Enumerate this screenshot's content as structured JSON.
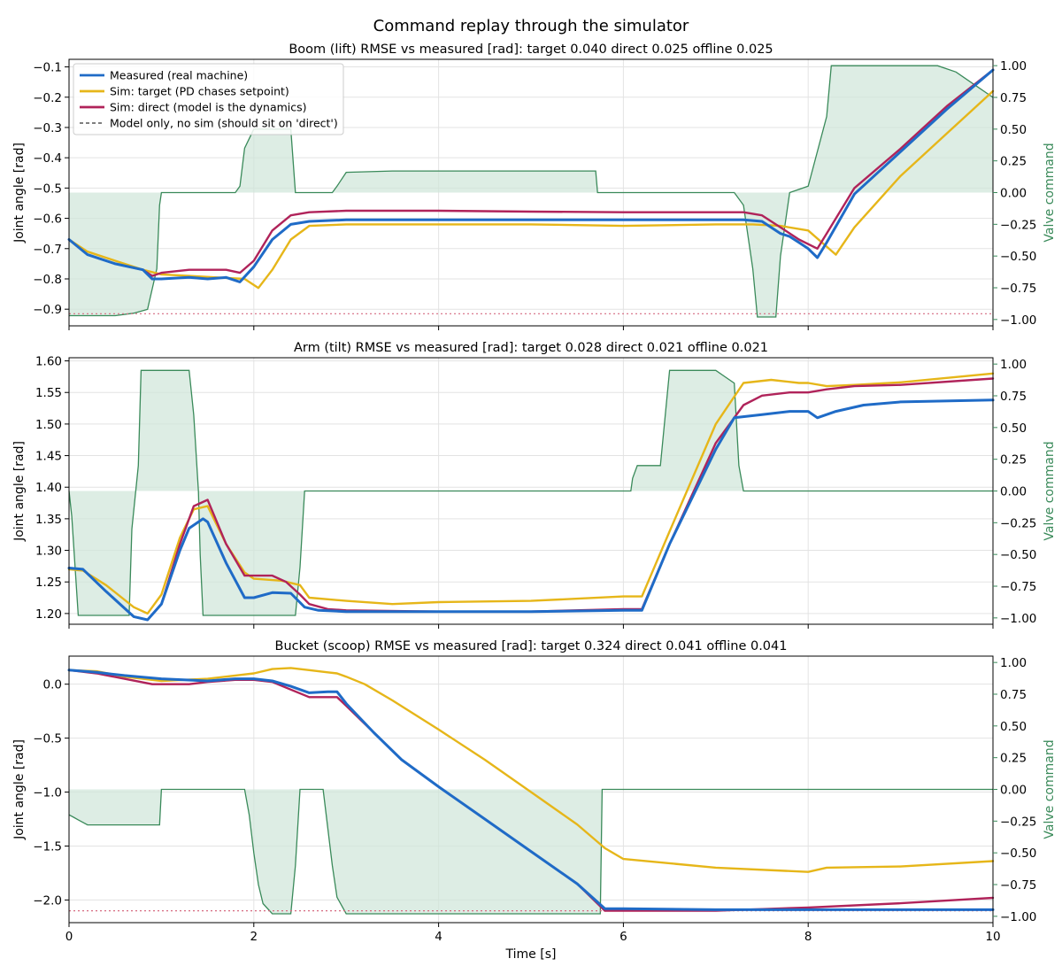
{
  "suptitle": "Command replay through the simulator",
  "legend": {
    "entries": [
      {
        "label": "Measured (real machine)",
        "color": "#1f6bc7",
        "style": "solid"
      },
      {
        "label": "Sim: target (PD chases setpoint)",
        "color": "#e6b619",
        "style": "solid"
      },
      {
        "label": "Sim: direct (model is the dynamics)",
        "color": "#b0235a",
        "style": "solid"
      },
      {
        "label": "Model only, no sim (should sit on 'direct')",
        "color": "#555555",
        "style": "dashed"
      }
    ],
    "placement": "upper-left"
  },
  "colors": {
    "measured": "#1f6bc7",
    "target": "#e6b619",
    "direct": "#b0235a",
    "model_only": "#555555",
    "valve": "#3a8a5a",
    "valve_fill": "#cfe6d8"
  },
  "chart_data": [
    {
      "type": "line",
      "title": "Boom (lift)   RMSE vs measured [rad]:  target 0.040   direct 0.025   offline 0.025",
      "xlabel": "",
      "ylabel": "Joint angle [rad]",
      "ylabel_right": "Valve command",
      "xlim": [
        0,
        10
      ],
      "ylim": [
        -0.955,
        -0.075
      ],
      "ylim_right": [
        -1.05,
        1.05
      ],
      "xticks": [
        0,
        2,
        4,
        6,
        8,
        10
      ],
      "yticks": [
        -0.9,
        -0.8,
        -0.7,
        -0.6,
        -0.5,
        -0.4,
        -0.3,
        -0.2,
        -0.1
      ],
      "ytick_labels": [
        "−0.9",
        "−0.8",
        "−0.7",
        "−0.6",
        "−0.5",
        "−0.4",
        "−0.3",
        "−0.2",
        "−0.1"
      ],
      "yticks_right": [
        -1.0,
        -0.75,
        -0.5,
        -0.25,
        0.0,
        0.25,
        0.5,
        0.75,
        1.0
      ],
      "ytick_labels_right": [
        "−1.00",
        "−0.75",
        "−0.50",
        "−0.25",
        "0.00",
        "0.25",
        "0.50",
        "0.75",
        "1.00"
      ],
      "grid": true,
      "series": [
        {
          "name": "Measured (real machine)",
          "key": "measured",
          "x": [
            0,
            0.2,
            0.5,
            0.8,
            0.9,
            1.0,
            1.3,
            1.5,
            1.7,
            1.85,
            2.0,
            2.2,
            2.4,
            2.6,
            3.0,
            4.0,
            5.0,
            6.0,
            7.0,
            7.3,
            7.5,
            7.7,
            7.8,
            7.9,
            8.0,
            8.1,
            8.2,
            8.5,
            9.0,
            9.5,
            10.0
          ],
          "y": [
            -0.67,
            -0.72,
            -0.75,
            -0.77,
            -0.8,
            -0.8,
            -0.795,
            -0.8,
            -0.795,
            -0.81,
            -0.76,
            -0.67,
            -0.62,
            -0.61,
            -0.605,
            -0.605,
            -0.605,
            -0.605,
            -0.605,
            -0.605,
            -0.61,
            -0.65,
            -0.66,
            -0.68,
            -0.7,
            -0.73,
            -0.68,
            -0.52,
            -0.38,
            -0.24,
            -0.11
          ]
        },
        {
          "name": "Sim: target (PD chases setpoint)",
          "key": "target",
          "x": [
            0,
            0.2,
            0.5,
            0.8,
            1.0,
            1.3,
            1.6,
            1.9,
            2.05,
            2.2,
            2.4,
            2.6,
            3.0,
            4.0,
            5.0,
            6.0,
            7.0,
            7.4,
            7.7,
            8.0,
            8.3,
            8.5,
            9.0,
            9.5,
            10.0
          ],
          "y": [
            -0.67,
            -0.71,
            -0.74,
            -0.77,
            -0.785,
            -0.79,
            -0.795,
            -0.8,
            -0.83,
            -0.77,
            -0.67,
            -0.625,
            -0.62,
            -0.62,
            -0.62,
            -0.625,
            -0.62,
            -0.62,
            -0.625,
            -0.64,
            -0.72,
            -0.63,
            -0.46,
            -0.32,
            -0.18
          ]
        },
        {
          "name": "Sim: direct (model is the dynamics)",
          "key": "direct",
          "x": [
            0,
            0.2,
            0.5,
            0.8,
            0.9,
            1.0,
            1.3,
            1.5,
            1.7,
            1.85,
            2.0,
            2.2,
            2.4,
            2.6,
            3.0,
            4.0,
            5.0,
            6.0,
            7.0,
            7.3,
            7.5,
            7.7,
            7.9,
            8.1,
            8.2,
            8.5,
            9.0,
            9.5,
            10.0
          ],
          "y": [
            -0.67,
            -0.72,
            -0.75,
            -0.77,
            -0.79,
            -0.78,
            -0.77,
            -0.77,
            -0.77,
            -0.78,
            -0.74,
            -0.64,
            -0.59,
            -0.58,
            -0.575,
            -0.575,
            -0.578,
            -0.58,
            -0.58,
            -0.58,
            -0.59,
            -0.63,
            -0.67,
            -0.7,
            -0.65,
            -0.5,
            -0.37,
            -0.23,
            -0.11
          ]
        },
        {
          "name": "valve",
          "key": "valve",
          "x": [
            0,
            0.5,
            0.7,
            0.85,
            0.95,
            0.98,
            1.0,
            1.8,
            1.85,
            1.9,
            2.0,
            2.1,
            2.3,
            2.4,
            2.45,
            2.7,
            2.85,
            2.9,
            3.0,
            3.5,
            4.0,
            5.0,
            5.7,
            5.72,
            7.2,
            7.3,
            7.4,
            7.45,
            7.5,
            7.65,
            7.7,
            7.75,
            7.8,
            8.0,
            8.2,
            8.25,
            9.0,
            9.4,
            9.6,
            9.8,
            10.0
          ],
          "y": [
            -0.97,
            -0.97,
            -0.95,
            -0.92,
            -0.6,
            -0.1,
            0.0,
            0.0,
            0.05,
            0.35,
            0.5,
            0.5,
            0.5,
            0.5,
            0.0,
            0.0,
            0.0,
            0.05,
            0.16,
            0.17,
            0.17,
            0.17,
            0.17,
            0.0,
            0.0,
            -0.1,
            -0.6,
            -0.98,
            -0.98,
            -0.98,
            -0.5,
            -0.25,
            0.0,
            0.05,
            0.6,
            1.0,
            1.0,
            1.0,
            0.95,
            0.85,
            0.75
          ]
        }
      ],
      "reference_lines": [
        {
          "axis": "y",
          "value": -0.915,
          "color": "#d66a80",
          "style": "dotted"
        }
      ]
    },
    {
      "type": "line",
      "title": "Arm (tilt)   RMSE vs measured [rad]:  target 0.028   direct 0.021   offline 0.021",
      "xlabel": "",
      "ylabel": "Joint angle [rad]",
      "ylabel_right": "Valve command",
      "xlim": [
        0,
        10
      ],
      "ylim": [
        1.183,
        1.605
      ],
      "ylim_right": [
        -1.05,
        1.05
      ],
      "xticks": [
        0,
        2,
        4,
        6,
        8,
        10
      ],
      "yticks": [
        1.2,
        1.25,
        1.3,
        1.35,
        1.4,
        1.45,
        1.5,
        1.55,
        1.6
      ],
      "ytick_labels": [
        "1.20",
        "1.25",
        "1.30",
        "1.35",
        "1.40",
        "1.45",
        "1.50",
        "1.55",
        "1.60"
      ],
      "yticks_right": [
        -1.0,
        -0.75,
        -0.5,
        -0.25,
        0.0,
        0.25,
        0.5,
        0.75,
        1.0
      ],
      "ytick_labels_right": [
        "−1.00",
        "−0.75",
        "−0.50",
        "−0.25",
        "0.00",
        "0.25",
        "0.50",
        "0.75",
        "1.00"
      ],
      "grid": true,
      "series": [
        {
          "name": "Measured (real machine)",
          "key": "measured",
          "x": [
            0,
            0.15,
            0.4,
            0.7,
            0.85,
            1.0,
            1.2,
            1.3,
            1.45,
            1.5,
            1.7,
            1.9,
            2.0,
            2.2,
            2.4,
            2.55,
            2.7,
            3.0,
            4.0,
            5.0,
            6.0,
            6.2,
            6.5,
            7.0,
            7.2,
            7.5,
            7.8,
            8.0,
            8.1,
            8.3,
            8.6,
            9.0,
            10.0
          ],
          "y": [
            1.272,
            1.27,
            1.235,
            1.195,
            1.19,
            1.215,
            1.3,
            1.335,
            1.35,
            1.345,
            1.28,
            1.225,
            1.225,
            1.233,
            1.232,
            1.21,
            1.205,
            1.203,
            1.203,
            1.203,
            1.205,
            1.205,
            1.31,
            1.46,
            1.51,
            1.515,
            1.52,
            1.52,
            1.51,
            1.52,
            1.53,
            1.535,
            1.538
          ]
        },
        {
          "name": "Sim: target (PD chases setpoint)",
          "key": "target",
          "x": [
            0,
            0.15,
            0.4,
            0.7,
            0.85,
            1.0,
            1.2,
            1.35,
            1.5,
            1.7,
            1.9,
            2.0,
            2.3,
            2.5,
            2.6,
            3.0,
            3.5,
            4.0,
            5.0,
            6.0,
            6.2,
            6.5,
            7.0,
            7.3,
            7.6,
            7.9,
            8.0,
            8.2,
            8.5,
            9.0,
            10.0
          ],
          "y": [
            1.27,
            1.268,
            1.245,
            1.21,
            1.2,
            1.23,
            1.32,
            1.365,
            1.37,
            1.31,
            1.265,
            1.255,
            1.252,
            1.245,
            1.225,
            1.22,
            1.215,
            1.218,
            1.22,
            1.227,
            1.227,
            1.33,
            1.5,
            1.565,
            1.57,
            1.565,
            1.565,
            1.56,
            1.562,
            1.566,
            1.58
          ]
        },
        {
          "name": "Sim: direct (model is the dynamics)",
          "key": "direct",
          "x": [
            0,
            0.15,
            0.4,
            0.7,
            0.85,
            1.0,
            1.2,
            1.35,
            1.5,
            1.7,
            1.9,
            2.0,
            2.2,
            2.35,
            2.5,
            2.6,
            2.8,
            3.0,
            4.0,
            5.0,
            6.0,
            6.2,
            6.5,
            7.0,
            7.3,
            7.5,
            7.8,
            8.0,
            8.2,
            8.5,
            9.0,
            10.0
          ],
          "y": [
            1.272,
            1.27,
            1.235,
            1.195,
            1.19,
            1.215,
            1.31,
            1.37,
            1.38,
            1.31,
            1.26,
            1.26,
            1.26,
            1.25,
            1.23,
            1.215,
            1.207,
            1.205,
            1.203,
            1.203,
            1.207,
            1.207,
            1.31,
            1.47,
            1.53,
            1.545,
            1.55,
            1.55,
            1.555,
            1.56,
            1.562,
            1.572
          ]
        },
        {
          "name": "valve",
          "key": "valve",
          "x": [
            0,
            0.03,
            0.1,
            0.12,
            0.5,
            0.65,
            0.68,
            0.75,
            0.78,
            0.8,
            1.3,
            1.35,
            1.4,
            1.42,
            1.45,
            2.4,
            2.45,
            2.5,
            2.55,
            6.08,
            6.1,
            6.15,
            6.2,
            6.4,
            6.5,
            6.8,
            7.0,
            7.1,
            7.2,
            7.25,
            7.3,
            10.0
          ],
          "y": [
            0.0,
            -0.2,
            -0.98,
            -0.98,
            -0.98,
            -0.98,
            -0.3,
            0.2,
            0.95,
            0.95,
            0.95,
            0.6,
            0.0,
            -0.5,
            -0.98,
            -0.98,
            -0.98,
            -0.6,
            0.0,
            0.0,
            0.1,
            0.2,
            0.2,
            0.2,
            0.95,
            0.95,
            0.95,
            0.9,
            0.85,
            0.2,
            0.0,
            0.0
          ]
        }
      ]
    },
    {
      "type": "line",
      "title": "Bucket (scoop)   RMSE vs measured [rad]:  target 0.324   direct 0.041   offline 0.041",
      "xlabel": "Time [s]",
      "ylabel": "Joint angle [rad]",
      "ylabel_right": "Valve command",
      "xlim": [
        0,
        10
      ],
      "ylim": [
        -2.21,
        0.26
      ],
      "ylim_right": [
        -1.05,
        1.05
      ],
      "xticks": [
        0,
        2,
        4,
        6,
        8,
        10
      ],
      "yticks": [
        -2.0,
        -1.5,
        -1.0,
        -0.5,
        0.0
      ],
      "ytick_labels": [
        "−2.0",
        "−1.5",
        "−1.0",
        "−0.5",
        "0.0"
      ],
      "yticks_right": [
        -1.0,
        -0.75,
        -0.5,
        -0.25,
        0.0,
        0.25,
        0.5,
        0.75,
        1.0
      ],
      "ytick_labels_right": [
        "−1.00",
        "−0.75",
        "−0.50",
        "−0.25",
        "0.00",
        "0.25",
        "0.50",
        "0.75",
        "1.00"
      ],
      "grid": true,
      "series": [
        {
          "name": "Measured (real machine)",
          "key": "measured",
          "x": [
            0,
            0.3,
            0.6,
            1.0,
            1.5,
            1.8,
            2.0,
            2.2,
            2.4,
            2.6,
            2.8,
            2.9,
            3.0,
            3.3,
            3.6,
            4.0,
            4.5,
            5.0,
            5.5,
            5.8,
            6.0,
            7.0,
            8.0,
            9.0,
            10.0
          ],
          "y": [
            0.13,
            0.11,
            0.08,
            0.05,
            0.03,
            0.05,
            0.05,
            0.03,
            -0.02,
            -0.08,
            -0.07,
            -0.07,
            -0.18,
            -0.45,
            -0.7,
            -0.95,
            -1.25,
            -1.55,
            -1.85,
            -2.08,
            -2.08,
            -2.09,
            -2.09,
            -2.09,
            -2.09
          ]
        },
        {
          "name": "Sim: target (PD chases setpoint)",
          "key": "target",
          "x": [
            0,
            0.3,
            0.6,
            1.0,
            1.5,
            1.8,
            2.0,
            2.2,
            2.4,
            2.6,
            2.8,
            2.9,
            3.0,
            3.2,
            3.5,
            4.0,
            4.5,
            5.0,
            5.5,
            5.8,
            6.0,
            7.0,
            8.0,
            8.2,
            9.0,
            10.0
          ],
          "y": [
            0.13,
            0.12,
            0.07,
            0.03,
            0.05,
            0.08,
            0.1,
            0.14,
            0.15,
            0.13,
            0.11,
            0.1,
            0.07,
            0.0,
            -0.15,
            -0.42,
            -0.7,
            -1.0,
            -1.3,
            -1.52,
            -1.62,
            -1.7,
            -1.74,
            -1.7,
            -1.69,
            -1.64
          ]
        },
        {
          "name": "Sim: direct (model is the dynamics)",
          "key": "direct",
          "x": [
            0,
            0.3,
            0.6,
            0.9,
            1.0,
            1.3,
            1.5,
            1.8,
            2.0,
            2.2,
            2.4,
            2.6,
            2.8,
            2.9,
            3.0,
            3.3,
            3.6,
            4.0,
            4.5,
            5.0,
            5.5,
            5.8,
            6.0,
            7.0,
            8.0,
            9.0,
            10.0
          ],
          "y": [
            0.13,
            0.1,
            0.05,
            0.0,
            0.0,
            0.0,
            0.02,
            0.04,
            0.04,
            0.02,
            -0.05,
            -0.12,
            -0.12,
            -0.12,
            -0.2,
            -0.45,
            -0.7,
            -0.95,
            -1.25,
            -1.55,
            -1.85,
            -2.1,
            -2.1,
            -2.1,
            -2.07,
            -2.03,
            -1.98
          ]
        },
        {
          "name": "valve",
          "key": "valve",
          "x": [
            0,
            0.05,
            0.1,
            0.2,
            0.4,
            0.8,
            0.98,
            1.0,
            1.9,
            1.95,
            2.0,
            2.05,
            2.1,
            2.2,
            2.4,
            2.45,
            2.5,
            2.75,
            2.8,
            2.85,
            2.9,
            3.0,
            3.2,
            4.0,
            5.0,
            5.75,
            5.77,
            10.0
          ],
          "y": [
            -0.2,
            -0.22,
            -0.24,
            -0.28,
            -0.28,
            -0.28,
            -0.28,
            0.0,
            0.0,
            -0.2,
            -0.5,
            -0.75,
            -0.9,
            -0.98,
            -0.98,
            -0.6,
            0.0,
            0.0,
            -0.3,
            -0.6,
            -0.85,
            -0.98,
            -0.98,
            -0.98,
            -0.98,
            -0.98,
            0.0,
            0.0
          ]
        }
      ],
      "reference_lines": [
        {
          "axis": "y",
          "value": -2.1,
          "color": "#d66a80",
          "style": "dotted"
        }
      ]
    }
  ]
}
